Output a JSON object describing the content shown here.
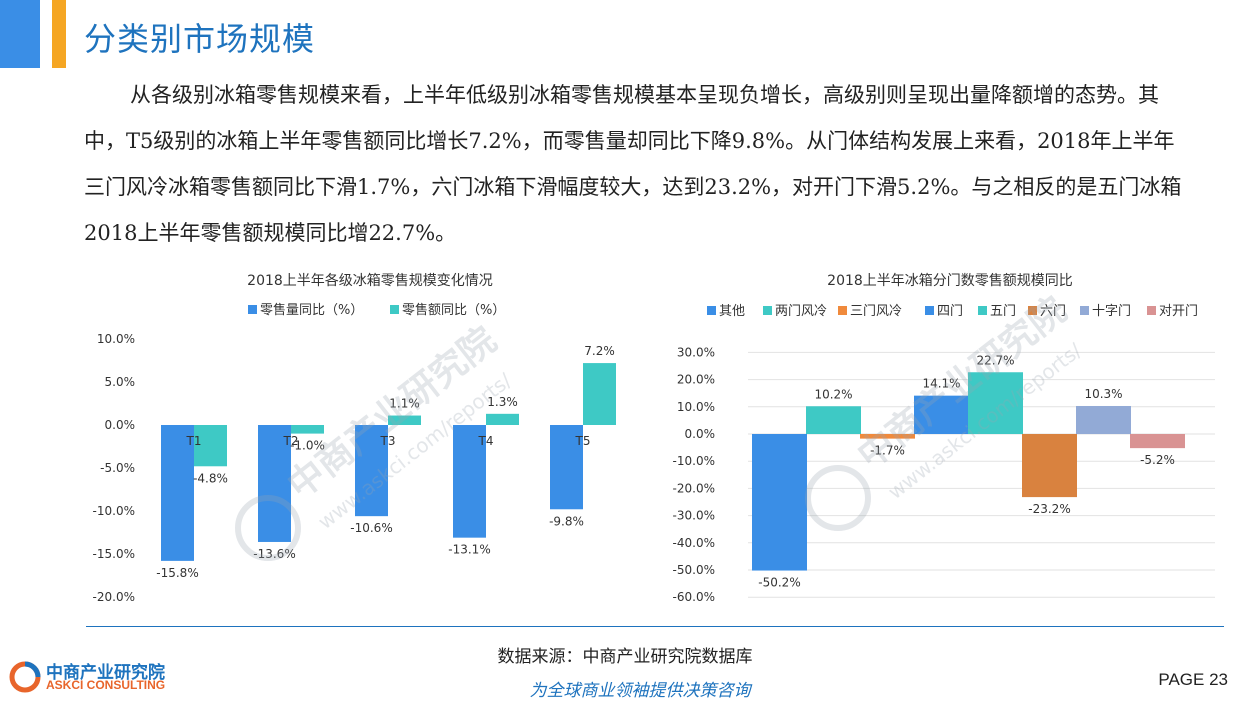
{
  "header": {
    "title": "分类别市场规模",
    "accent_primary": "#3a8ee6",
    "accent_secondary": "#f5a623"
  },
  "paragraph": "从各级别冰箱零售规模来看，上半年低级别冰箱零售规模基本呈现负增长，高级别则呈现出量降额增的态势。其中，T5级别的冰箱上半年零售额同比增长7.2%，而零售量却同比下降9.8%。从门体结构发展上来看，2018年上半年三门风冷冰箱零售额同比下滑1.7%，六门冰箱下滑幅度较大，达到23.2%，对开门下滑5.2%。与之相反的是五门冰箱2018上半年零售额规模同比增22.7%。",
  "watermark": {
    "cn": "中商产业研究院",
    "url": "www.askci.com/reports/"
  },
  "chart_data": [
    {
      "type": "bar",
      "title": "2018上半年各级冰箱零售规模变化情况",
      "categories": [
        "T1",
        "T2",
        "T3",
        "T4",
        "T5"
      ],
      "series": [
        {
          "name": "零售量同比（%）",
          "color": "#3a8ee6",
          "values": [
            -15.8,
            -13.6,
            -10.6,
            -13.1,
            -9.8
          ],
          "labels": [
            "-15.8%",
            "-13.6%",
            "-10.6%",
            "-13.1%",
            "-9.8%"
          ]
        },
        {
          "name": "零售额同比（%）",
          "color": "#3ec9c5",
          "values": [
            -4.8,
            -1.0,
            1.1,
            1.3,
            7.2
          ],
          "labels": [
            "-4.8%",
            "-1.0%",
            "1.1%",
            "1.3%",
            "7.2%"
          ]
        }
      ],
      "ylim": [
        -20,
        10
      ],
      "yticks": [
        10,
        5,
        0,
        -5,
        -10,
        -15,
        -20
      ],
      "ytick_labels": [
        "10.0%",
        "5.0%",
        "0.0%",
        "-5.0%",
        "-10.0%",
        "-15.0%",
        "-20.0%"
      ],
      "grid": false,
      "legend": "top"
    },
    {
      "type": "bar",
      "title": "2018上半年冰箱分门数零售额规模同比",
      "categories": [
        "其他",
        "两门风冷",
        "三门风冷",
        "四门",
        "五门",
        "六门",
        "十字门",
        "对开门"
      ],
      "values": [
        -50.2,
        10.2,
        -1.7,
        14.1,
        22.7,
        -23.2,
        10.3,
        -5.2
      ],
      "labels": [
        "-50.2%",
        "10.2%",
        "-1.7%",
        "14.1%",
        "22.7%",
        "-23.2%",
        "10.3%",
        "-5.2%"
      ],
      "colors": [
        "#3a8ee6",
        "#3ec9c5",
        "#f08a3c",
        "#3a8ee6",
        "#3ec9c5",
        "#d9823f",
        "#92aad6",
        "#d99393"
      ],
      "ylim": [
        -60,
        30
      ],
      "yticks": [
        30,
        20,
        10,
        0,
        -10,
        -20,
        -30,
        -40,
        -50,
        -60
      ],
      "ytick_labels": [
        "30.0%",
        "20.0%",
        "10.0%",
        "0.0%",
        "-10.0%",
        "-20.0%",
        "-30.0%",
        "-40.0%",
        "-50.0%",
        "-60.0%"
      ],
      "grid": true,
      "legend": "top"
    }
  ],
  "footer": {
    "source": "数据来源：中商产业研究院数据库",
    "slogan": "为全球商业领袖提供决策咨询",
    "page": "PAGE 23",
    "logo_cn": "中商产业研究院",
    "logo_en": "ASKCI CONSULTING"
  }
}
